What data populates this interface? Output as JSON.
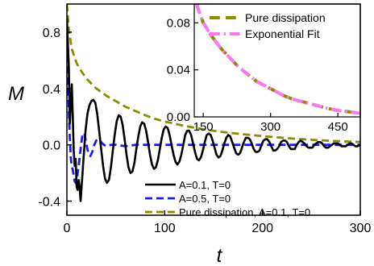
{
  "chart_data": [
    {
      "id": "main",
      "type": "line",
      "xlabel": "t",
      "ylabel": "M",
      "xlim": [
        0,
        300
      ],
      "ylim": [
        -0.5,
        1.0
      ],
      "xticks": [
        0,
        100,
        200,
        300
      ],
      "xtick_labels": [
        "0",
        "100",
        "200",
        "300"
      ],
      "yticks": [
        -0.4,
        0.0,
        0.4,
        0.8
      ],
      "ytick_labels": [
        "-0.4",
        "0.0",
        "0.4",
        "0.8"
      ],
      "legend_position": "bottom-right",
      "series": [
        {
          "name": "A=0.1, T=0",
          "color": "#000000",
          "style": "solid",
          "points": [
            [
              0,
              0.9
            ],
            [
              2,
              0.55
            ],
            [
              3,
              0.15
            ],
            [
              4,
              0.3
            ],
            [
              5,
              0.43
            ],
            [
              6,
              0.2
            ],
            [
              7,
              -0.05
            ],
            [
              8,
              -0.15
            ],
            [
              9,
              -0.1
            ],
            [
              10,
              -0.3
            ],
            [
              11,
              -0.32
            ],
            [
              12,
              -0.25
            ],
            [
              13,
              -0.3
            ],
            [
              14,
              -0.4
            ],
            [
              15,
              -0.3
            ],
            [
              17,
              -0.1
            ],
            [
              19,
              0.1
            ],
            [
              21,
              0.22
            ],
            [
              23,
              0.28
            ],
            [
              25,
              0.31
            ],
            [
              27,
              0.32
            ],
            [
              29,
              0.3
            ],
            [
              31,
              0.22
            ],
            [
              33,
              0.1
            ],
            [
              35,
              -0.03
            ],
            [
              37,
              -0.15
            ],
            [
              39,
              -0.24
            ],
            [
              41,
              -0.27
            ],
            [
              43,
              -0.25
            ],
            [
              45,
              -0.16
            ],
            [
              47,
              -0.04
            ],
            [
              49,
              0.08
            ],
            [
              51,
              0.17
            ],
            [
              53,
              0.21
            ],
            [
              55,
              0.2
            ],
            [
              57,
              0.14
            ],
            [
              59,
              0.04
            ],
            [
              61,
              -0.07
            ],
            [
              63,
              -0.16
            ],
            [
              65,
              -0.2
            ],
            [
              67,
              -0.19
            ],
            [
              69,
              -0.13
            ],
            [
              71,
              -0.03
            ],
            [
              73,
              0.06
            ],
            [
              75,
              0.13
            ],
            [
              77,
              0.16
            ],
            [
              79,
              0.15
            ],
            [
              81,
              0.1
            ],
            [
              83,
              0.02
            ],
            [
              85,
              -0.07
            ],
            [
              87,
              -0.14
            ],
            [
              89,
              -0.17
            ],
            [
              91,
              -0.16
            ],
            [
              93,
              -0.11
            ],
            [
              95,
              -0.03
            ],
            [
              97,
              0.05
            ],
            [
              99,
              0.11
            ],
            [
              101,
              0.13
            ],
            [
              103,
              0.12
            ],
            [
              105,
              0.07
            ],
            [
              107,
              0.0
            ],
            [
              109,
              -0.07
            ],
            [
              111,
              -0.12
            ],
            [
              113,
              -0.14
            ],
            [
              115,
              -0.12
            ],
            [
              117,
              -0.07
            ],
            [
              119,
              0.0
            ],
            [
              121,
              0.07
            ],
            [
              123,
              0.1
            ],
            [
              125,
              0.1
            ],
            [
              127,
              0.07
            ],
            [
              129,
              0.01
            ],
            [
              131,
              -0.05
            ],
            [
              133,
              -0.1
            ],
            [
              135,
              -0.11
            ],
            [
              137,
              -0.09
            ],
            [
              139,
              -0.04
            ],
            [
              141,
              0.02
            ],
            [
              143,
              0.07
            ],
            [
              145,
              0.08
            ],
            [
              147,
              0.07
            ],
            [
              149,
              0.03
            ],
            [
              151,
              -0.02
            ],
            [
              153,
              -0.07
            ],
            [
              155,
              -0.09
            ],
            [
              157,
              -0.08
            ],
            [
              159,
              -0.04
            ],
            [
              161,
              0.01
            ],
            [
              163,
              0.05
            ],
            [
              165,
              0.07
            ],
            [
              167,
              0.06
            ],
            [
              169,
              0.02
            ],
            [
              171,
              -0.02
            ],
            [
              173,
              -0.06
            ],
            [
              175,
              -0.07
            ],
            [
              177,
              -0.06
            ],
            [
              179,
              -0.02
            ],
            [
              181,
              0.02
            ],
            [
              183,
              0.05
            ],
            [
              185,
              0.05
            ],
            [
              187,
              0.04
            ],
            [
              189,
              0.01
            ],
            [
              191,
              -0.03
            ],
            [
              193,
              -0.05
            ],
            [
              195,
              -0.05
            ],
            [
              197,
              -0.04
            ],
            [
              199,
              0.0
            ],
            [
              201,
              0.03
            ],
            [
              203,
              0.04
            ],
            [
              205,
              0.04
            ],
            [
              207,
              0.02
            ],
            [
              209,
              -0.01
            ],
            [
              211,
              -0.04
            ],
            [
              213,
              -0.04
            ],
            [
              215,
              -0.03
            ],
            [
              217,
              -0.01
            ],
            [
              219,
              0.02
            ],
            [
              221,
              0.03
            ],
            [
              223,
              0.03
            ],
            [
              225,
              0.02
            ],
            [
              227,
              -0.01
            ],
            [
              229,
              -0.03
            ],
            [
              231,
              -0.03
            ],
            [
              233,
              -0.03
            ],
            [
              235,
              0.0
            ],
            [
              237,
              0.02
            ],
            [
              239,
              0.03
            ],
            [
              241,
              0.02
            ],
            [
              243,
              0.01
            ],
            [
              245,
              -0.01
            ],
            [
              247,
              -0.02
            ],
            [
              249,
              -0.02
            ],
            [
              251,
              -0.02
            ],
            [
              253,
              0.0
            ],
            [
              255,
              0.01
            ],
            [
              257,
              0.02
            ],
            [
              259,
              0.02
            ],
            [
              261,
              0.01
            ],
            [
              263,
              -0.01
            ],
            [
              265,
              -0.02
            ],
            [
              267,
              -0.02
            ],
            [
              269,
              -0.01
            ],
            [
              271,
              0.0
            ],
            [
              273,
              0.01
            ],
            [
              275,
              0.01
            ],
            [
              277,
              0.01
            ],
            [
              279,
              0.0
            ],
            [
              281,
              -0.01
            ],
            [
              283,
              -0.01
            ],
            [
              285,
              -0.01
            ],
            [
              287,
              0.0
            ],
            [
              289,
              0.01
            ],
            [
              291,
              0.01
            ],
            [
              293,
              0.0
            ],
            [
              295,
              -0.01
            ],
            [
              297,
              -0.01
            ],
            [
              300,
              0.0
            ]
          ]
        },
        {
          "name": "A=0.5, T=0",
          "color": "#1a1aff",
          "style": "dashed",
          "points": [
            [
              0,
              0.88
            ],
            [
              1,
              0.6
            ],
            [
              2,
              0.25
            ],
            [
              3,
              0.05
            ],
            [
              4,
              -0.1
            ],
            [
              5,
              -0.15
            ],
            [
              6,
              -0.18
            ],
            [
              7,
              -0.22
            ],
            [
              8,
              -0.26
            ],
            [
              9,
              -0.27
            ],
            [
              10,
              -0.25
            ],
            [
              12,
              -0.15
            ],
            [
              14,
              -0.03
            ],
            [
              16,
              0.08
            ],
            [
              18,
              0.08
            ],
            [
              20,
              0.0
            ],
            [
              22,
              -0.06
            ],
            [
              24,
              -0.08
            ],
            [
              26,
              -0.05
            ],
            [
              28,
              0.0
            ],
            [
              30,
              0.03
            ],
            [
              32,
              0.04
            ],
            [
              34,
              0.03
            ],
            [
              36,
              0.01
            ],
            [
              38,
              0.0
            ],
            [
              40,
              -0.01
            ],
            [
              45,
              0.0
            ],
            [
              50,
              0.0
            ],
            [
              60,
              -0.01
            ],
            [
              70,
              0.0
            ],
            [
              80,
              0.0
            ],
            [
              100,
              0.0
            ],
            [
              120,
              0.0
            ],
            [
              150,
              0.0
            ],
            [
              200,
              0.0
            ],
            [
              250,
              0.0
            ],
            [
              300,
              0.0
            ]
          ]
        },
        {
          "name": "Pure dissipation, A=0.1, T=0",
          "color": "#8b8b00",
          "style": "dashed",
          "points": [
            [
              0,
              1.0
            ],
            [
              2,
              0.82
            ],
            [
              5,
              0.68
            ],
            [
              10,
              0.58
            ],
            [
              15,
              0.52
            ],
            [
              20,
              0.47
            ],
            [
              30,
              0.4
            ],
            [
              40,
              0.35
            ],
            [
              50,
              0.31
            ],
            [
              60,
              0.27
            ],
            [
              70,
              0.24
            ],
            [
              80,
              0.21
            ],
            [
              90,
              0.185
            ],
            [
              100,
              0.165
            ],
            [
              120,
              0.135
            ],
            [
              140,
              0.11
            ],
            [
              160,
              0.09
            ],
            [
              180,
              0.075
            ],
            [
              200,
              0.062
            ],
            [
              220,
              0.05
            ],
            [
              240,
              0.04
            ],
            [
              260,
              0.032
            ],
            [
              280,
              0.025
            ],
            [
              300,
              0.02
            ]
          ]
        }
      ]
    },
    {
      "id": "inset",
      "type": "line",
      "xlabel": "",
      "ylabel": "",
      "xlim": [
        130,
        500
      ],
      "ylim": [
        0.0,
        0.096
      ],
      "xticks": [
        150,
        300,
        450
      ],
      "xtick_labels": [
        "150",
        "300",
        "450"
      ],
      "yticks": [
        0.0,
        0.04,
        0.08
      ],
      "ytick_labels": [
        "0.00",
        "0.04",
        "0.08"
      ],
      "legend_position": "top-right",
      "series": [
        {
          "name": "Pure dissipation",
          "color": "#8b8b00",
          "style": "dashed",
          "points": [
            [
              135,
              0.096
            ],
            [
              150,
              0.08
            ],
            [
              170,
              0.068
            ],
            [
              190,
              0.058
            ],
            [
              210,
              0.05
            ],
            [
              230,
              0.042
            ],
            [
              250,
              0.036
            ],
            [
              270,
              0.03
            ],
            [
              290,
              0.026
            ],
            [
              310,
              0.022
            ],
            [
              330,
              0.018
            ],
            [
              350,
              0.015
            ],
            [
              370,
              0.013
            ],
            [
              390,
              0.011
            ],
            [
              410,
              0.009
            ],
            [
              430,
              0.007
            ],
            [
              450,
              0.0055
            ],
            [
              470,
              0.0045
            ],
            [
              490,
              0.0035
            ],
            [
              500,
              0.003
            ]
          ]
        },
        {
          "name": "Exponential Fit",
          "color": "#ff77ee",
          "style": "dashdot",
          "points": [
            [
              135,
              0.096
            ],
            [
              150,
              0.08
            ],
            [
              170,
              0.068
            ],
            [
              190,
              0.058
            ],
            [
              210,
              0.05
            ],
            [
              230,
              0.042
            ],
            [
              250,
              0.036
            ],
            [
              270,
              0.03
            ],
            [
              290,
              0.026
            ],
            [
              310,
              0.022
            ],
            [
              330,
              0.018
            ],
            [
              350,
              0.015
            ],
            [
              370,
              0.013
            ],
            [
              390,
              0.011
            ],
            [
              410,
              0.009
            ],
            [
              430,
              0.007
            ],
            [
              450,
              0.0055
            ],
            [
              470,
              0.0045
            ],
            [
              490,
              0.0035
            ],
            [
              500,
              0.003
            ]
          ]
        }
      ]
    }
  ]
}
